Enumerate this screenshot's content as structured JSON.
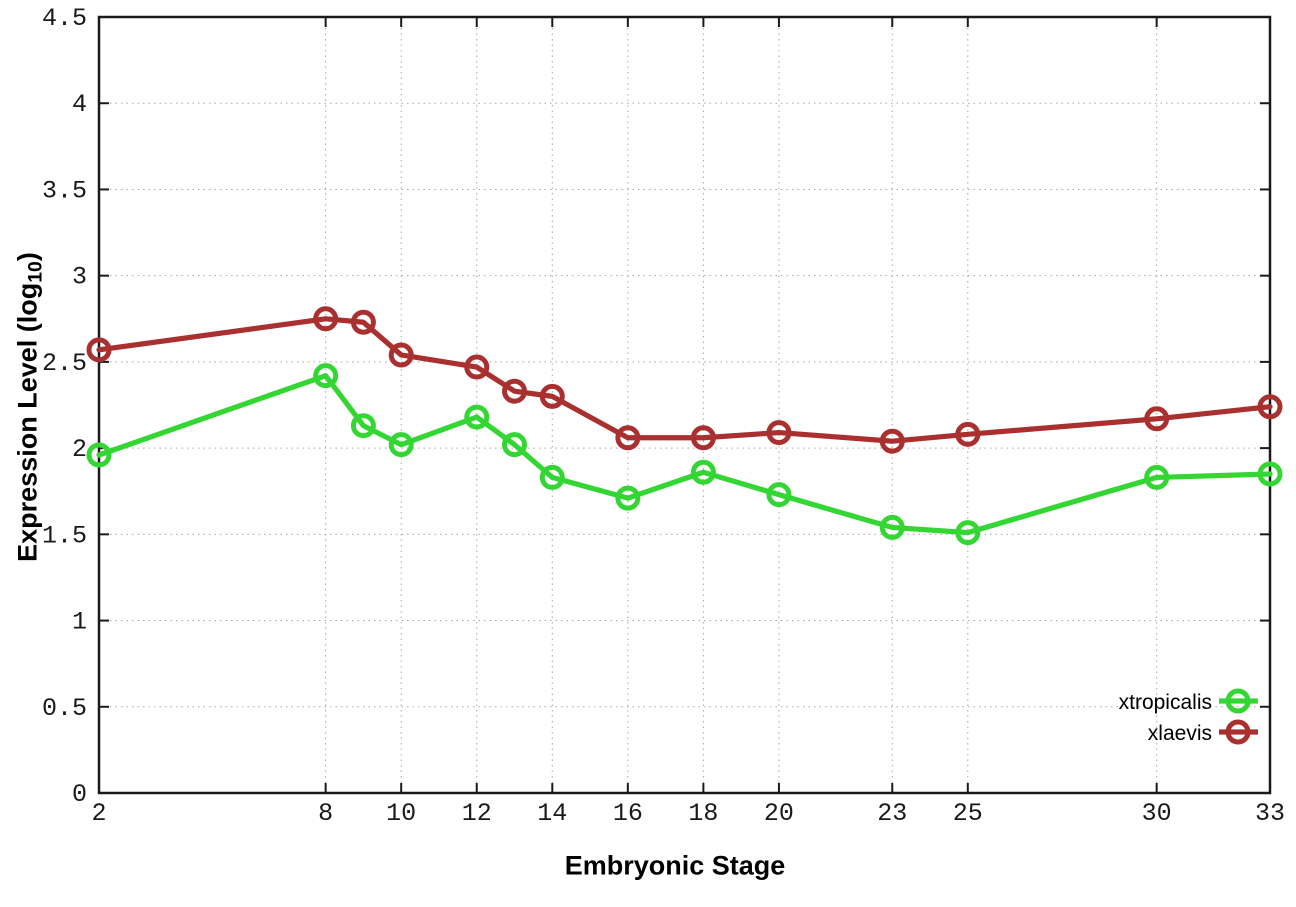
{
  "chart_data": {
    "type": "line",
    "title": "",
    "xlabel": "Embryonic Stage",
    "ylabel": {
      "main": "Expression Level (log",
      "sub": "10",
      "close": ")"
    },
    "xlim": [
      2,
      33
    ],
    "ylim": [
      0,
      4.5
    ],
    "grid": true,
    "legend_position": "bottom-right-inside",
    "x": [
      2,
      8,
      9,
      10,
      12,
      13,
      14,
      16,
      18,
      20,
      23,
      25,
      30,
      33
    ],
    "xticks": [
      2,
      8,
      10,
      12,
      14,
      16,
      18,
      20,
      23,
      25,
      30,
      33
    ],
    "xtick_labels": [
      "2",
      "8",
      "10",
      "12",
      "14",
      "16",
      "18",
      "20",
      "23",
      "25",
      "30",
      "33"
    ],
    "yticks": [
      0,
      0.5,
      1,
      1.5,
      2,
      2.5,
      3,
      3.5,
      4,
      4.5
    ],
    "ytick_labels": [
      "0",
      "0.5",
      "1",
      "1.5",
      "2",
      "2.5",
      "3",
      "3.5",
      "4",
      "4.5"
    ],
    "series": [
      {
        "name": "xtropicalis",
        "color": "#33d633",
        "values": [
          1.96,
          2.42,
          2.13,
          2.02,
          2.18,
          2.02,
          1.83,
          1.71,
          1.86,
          1.73,
          1.54,
          1.51,
          1.83,
          1.85
        ]
      },
      {
        "name": "xlaevis",
        "color": "#aa3030",
        "values": [
          2.57,
          2.75,
          2.73,
          2.54,
          2.47,
          2.33,
          2.3,
          2.06,
          2.06,
          2.09,
          2.04,
          2.08,
          2.17,
          2.24
        ]
      }
    ],
    "colors": {
      "axis": "#1a1a1a",
      "grid": "#a8a8a8",
      "tick_text": "#1a1a1a",
      "background": "#ffffff"
    }
  }
}
